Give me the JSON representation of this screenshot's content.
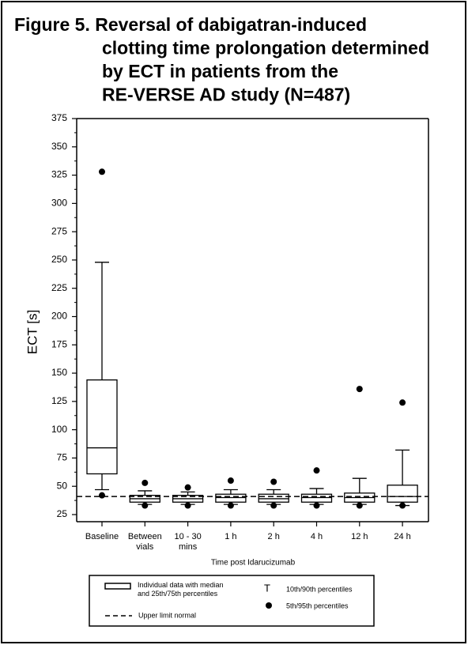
{
  "chart_data": {
    "type": "box",
    "title_lines": [
      "Figure 5. Reversal of dabigatran-induced",
      "clotting time prolongation determined",
      "by ECT in patients from the",
      "RE-VERSE AD study (N=487)"
    ],
    "x_label": "Time post Idarucizumab",
    "y_label": "ECT [s]",
    "categories": [
      "Baseline",
      "Between\nvials",
      "10 - 30\nmins",
      "1 h",
      "2 h",
      "4 h",
      "12 h",
      "24 h"
    ],
    "q1": [
      61,
      36,
      36,
      36,
      36,
      36,
      36,
      36
    ],
    "median": [
      84,
      39,
      39,
      40,
      39,
      40,
      40,
      41
    ],
    "q3": [
      144,
      42,
      42,
      43,
      43,
      43,
      44,
      51
    ],
    "p10": [
      47,
      34,
      34,
      34,
      34,
      34,
      34,
      33
    ],
    "p90": [
      248,
      46,
      45,
      47,
      47,
      48,
      57,
      82
    ],
    "p5": [
      42,
      33,
      33,
      33,
      33,
      33,
      33,
      33
    ],
    "p95": [
      328,
      53,
      49,
      55,
      54,
      64,
      136,
      124
    ],
    "reference_line": 41,
    "ylim": [
      25,
      375
    ],
    "yticks": [
      25,
      50,
      75,
      100,
      125,
      150,
      175,
      200,
      225,
      250,
      275,
      300,
      325,
      350,
      375
    ],
    "legend": {
      "box": "Individual data with median\nand 25th/75th percentiles",
      "reference": "Upper limit normal",
      "whisker_symbol": "T",
      "whisker": "10th/90th percentiles",
      "outlier": "5th/95th percentiles"
    }
  }
}
